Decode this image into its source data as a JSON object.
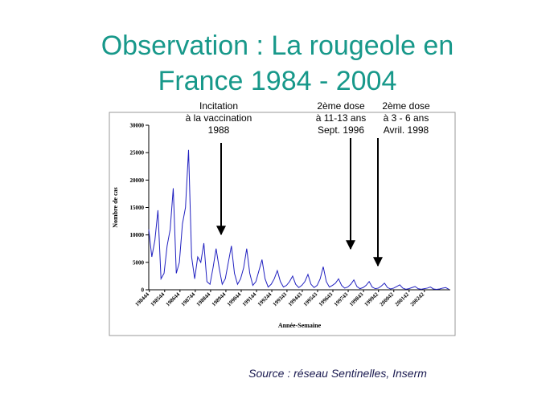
{
  "chart_data": {
    "type": "line",
    "title": [
      "Observation : La rougeole en",
      "France 1984 - 2004"
    ],
    "y_label": "Nombre de cas",
    "x_label": "Année-Semaine",
    "source": "Source : réseau Sentinelles, Inserm",
    "annotations": [
      [
        "Incitation",
        "à la vaccination",
        "1988"
      ],
      [
        "2ème dose",
        "à 11-13 ans",
        "Sept. 1996"
      ],
      [
        "2ème dose",
        "à 3 - 6 ans",
        "Avril. 1998"
      ]
    ],
    "x": [
      1984.8,
      1985.0,
      1985.2,
      1985.4,
      1985.6,
      1985.8,
      1986.0,
      1986.2,
      1986.4,
      1986.6,
      1986.8,
      1987.0,
      1987.2,
      1987.4,
      1987.6,
      1987.8,
      1988.0,
      1988.2,
      1988.4,
      1988.6,
      1988.8,
      1989.0,
      1989.2,
      1989.4,
      1989.6,
      1989.8,
      1990.0,
      1990.2,
      1990.4,
      1990.6,
      1990.8,
      1991.0,
      1991.2,
      1991.4,
      1991.6,
      1991.8,
      1992.0,
      1992.2,
      1992.4,
      1992.6,
      1992.8,
      1993.0,
      1993.2,
      1993.4,
      1993.6,
      1993.8,
      1994.0,
      1994.2,
      1994.4,
      1994.6,
      1994.8,
      1995.0,
      1995.2,
      1995.4,
      1995.6,
      1995.8,
      1996.0,
      1996.2,
      1996.4,
      1996.6,
      1996.8,
      1997.0,
      1997.2,
      1997.4,
      1997.6,
      1997.8,
      1998.0,
      1998.2,
      1998.4,
      1998.6,
      1998.8,
      1999.0,
      1999.2,
      1999.4,
      1999.6,
      1999.8,
      2000.0,
      2000.2,
      2000.4,
      2000.6,
      2000.8,
      2001.0,
      2001.2,
      2001.4,
      2001.6,
      2001.8,
      2002.0,
      2002.2,
      2002.4,
      2002.6,
      2002.8,
      2003.0,
      2003.2,
      2003.4,
      2003.6,
      2003.8,
      2004.0,
      2004.2,
      2004.4
    ],
    "series": [
      {
        "name": "Nombre de cas",
        "color": "#2020c0",
        "values": [
          11000,
          6000,
          9000,
          14500,
          2000,
          3000,
          8000,
          11000,
          18500,
          3000,
          5000,
          12000,
          15000,
          25500,
          6000,
          2000,
          6000,
          5000,
          8500,
          1500,
          1000,
          4000,
          7500,
          4000,
          1000,
          2000,
          5000,
          8000,
          3000,
          1000,
          2000,
          4000,
          7500,
          3000,
          800,
          1500,
          3500,
          5500,
          2000,
          500,
          1000,
          2000,
          3500,
          1500,
          500,
          800,
          1500,
          2500,
          1000,
          400,
          800,
          1500,
          2800,
          1000,
          400,
          800,
          2000,
          4200,
          1500,
          500,
          800,
          1200,
          2000,
          800,
          300,
          500,
          1000,
          1800,
          600,
          200,
          400,
          800,
          1500,
          500,
          200,
          300,
          700,
          1200,
          400,
          150,
          300,
          600,
          900,
          300,
          100,
          200,
          400,
          600,
          200,
          100,
          200,
          300,
          500,
          150,
          80,
          150,
          300,
          400,
          100
        ]
      }
    ],
    "xlim": [
      1984.8,
      2004.5
    ],
    "xticks": [
      {
        "value": 1984.84,
        "label": "198444"
      },
      {
        "value": 1985.84,
        "label": "198544"
      },
      {
        "value": 1986.84,
        "label": "198644"
      },
      {
        "value": 1987.84,
        "label": "198744"
      },
      {
        "value": 1988.84,
        "label": "198844"
      },
      {
        "value": 1989.84,
        "label": "198944"
      },
      {
        "value": 1990.84,
        "label": "199044"
      },
      {
        "value": 1991.84,
        "label": "199144"
      },
      {
        "value": 1992.84,
        "label": "199244"
      },
      {
        "value": 1993.83,
        "label": "199343"
      },
      {
        "value": 1994.83,
        "label": "199443"
      },
      {
        "value": 1995.83,
        "label": "199543"
      },
      {
        "value": 1996.83,
        "label": "199643"
      },
      {
        "value": 1997.83,
        "label": "199743"
      },
      {
        "value": 1998.83,
        "label": "199843"
      },
      {
        "value": 1999.81,
        "label": "199942"
      },
      {
        "value": 2000.81,
        "label": "200042"
      },
      {
        "value": 2001.81,
        "label": "200142"
      },
      {
        "value": 2002.81,
        "label": "200242"
      }
    ],
    "ylim": [
      0,
      30000
    ],
    "yticks": [
      0,
      5000,
      10000,
      15000,
      20000,
      25000,
      30000
    ]
  }
}
